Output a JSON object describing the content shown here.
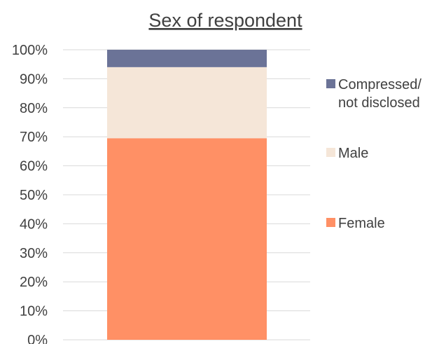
{
  "chart_data": {
    "type": "bar",
    "stacked": true,
    "percent": true,
    "title": "Sex of respondent",
    "categories": [
      ""
    ],
    "series": [
      {
        "name": "Female",
        "values": [
          69.5
        ],
        "color": "#FF9065"
      },
      {
        "name": "Male",
        "values": [
          24.5
        ],
        "color": "#F5E6D8"
      },
      {
        "name": "Compressed/\nnot disclosed",
        "values": [
          6.0
        ],
        "color": "#6B7397"
      }
    ],
    "y_ticks": [
      "0%",
      "10%",
      "20%",
      "30%",
      "40%",
      "50%",
      "60%",
      "70%",
      "80%",
      "90%",
      "100%"
    ],
    "ylim": [
      0,
      100
    ],
    "grid": true,
    "legend_position": "right",
    "legend_order": [
      "Compressed/\nnot disclosed",
      "Male",
      "Female"
    ]
  }
}
